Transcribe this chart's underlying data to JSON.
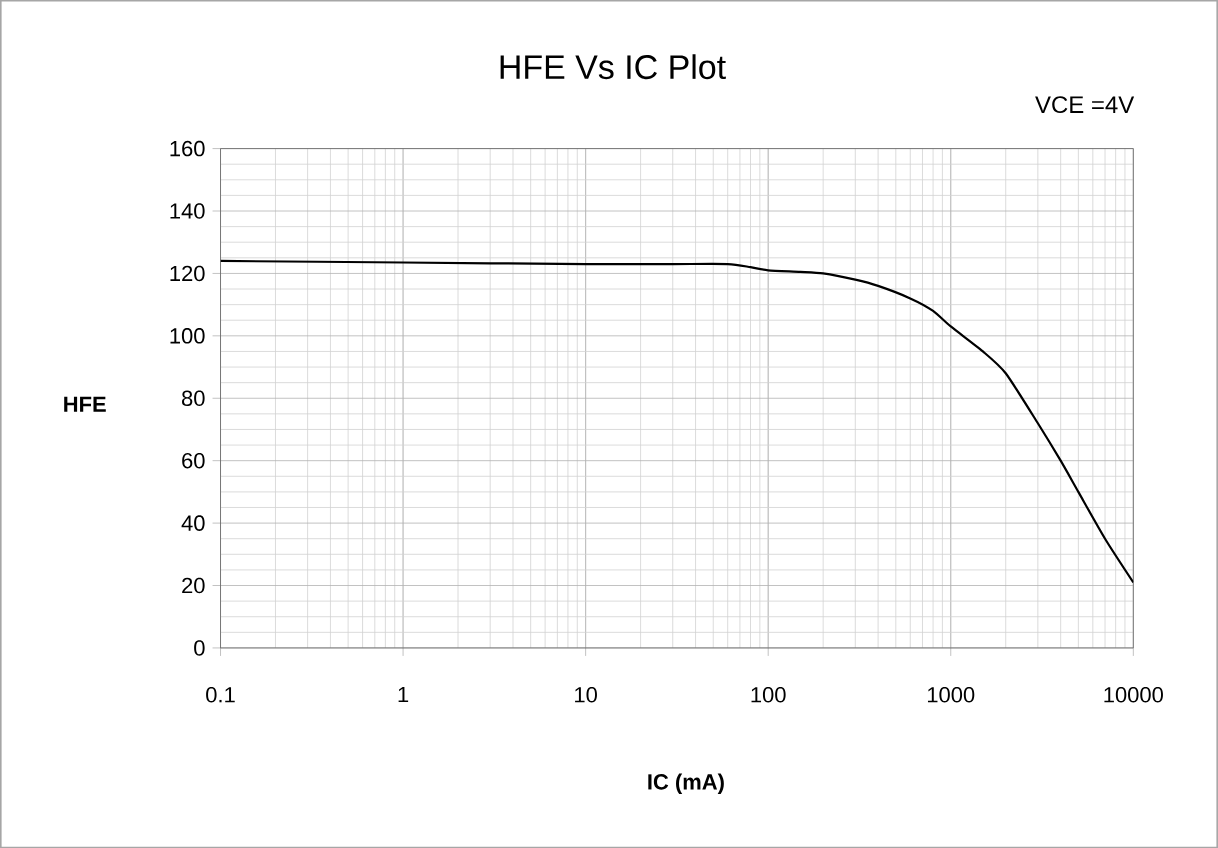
{
  "chart_data": {
    "type": "line",
    "title": "HFE Vs IC Plot",
    "xlabel": "IC (mA)",
    "ylabel": "HFE",
    "annotations": [
      "VCE =4V"
    ],
    "log": "x",
    "grid": true,
    "marker": "none",
    "line_style": "solid",
    "xlim": [
      0.1,
      10000
    ],
    "xticks": [
      0.1,
      1,
      10,
      100,
      1000,
      10000
    ],
    "ylim": [
      0,
      160
    ],
    "yticks": [
      0,
      20,
      40,
      60,
      80,
      100,
      120,
      140,
      160
    ],
    "series": [
      {
        "color": "#000000",
        "x": [
          0.1,
          1,
          10,
          30,
          60,
          80,
          100,
          150,
          200,
          300,
          400,
          600,
          800,
          1000,
          1500,
          2000,
          3000,
          4000,
          5000,
          7000,
          10000
        ],
        "values": [
          124,
          123.5,
          123,
          123,
          123,
          122,
          121,
          120.5,
          120,
          118,
          116,
          112,
          108,
          103,
          95,
          88,
          72,
          60,
          50,
          35,
          21
        ]
      }
    ]
  }
}
